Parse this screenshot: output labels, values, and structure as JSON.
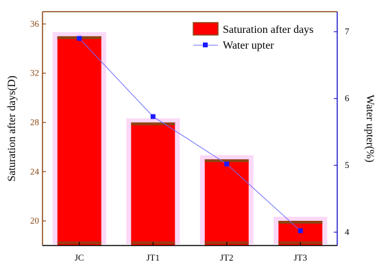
{
  "chart_data": {
    "type": "bar",
    "categories": [
      "JC",
      "JT1",
      "JT2",
      "JT3"
    ],
    "series": [
      {
        "name": "Saturation after days",
        "type": "bar",
        "axis": "left",
        "values": [
          35,
          28,
          25,
          20
        ],
        "color": "#ff0000",
        "edge_color": "#8b4513"
      },
      {
        "name": "Water upter",
        "type": "line",
        "axis": "right",
        "values": [
          6.9,
          5.73,
          5.02,
          4.02
        ],
        "color": "#1a1aff"
      }
    ],
    "ylabel": "Saturation after days(D)",
    "y2label": "Water upter(%)",
    "ylim": [
      18,
      37
    ],
    "y2lim": [
      3.8,
      7.3
    ],
    "yticks": [
      20,
      24,
      28,
      32,
      36
    ],
    "y2ticks": [
      4,
      5,
      6,
      7
    ],
    "legend_position": "top-right",
    "grid": false,
    "colors": {
      "left_axis": "#8b4513",
      "right_axis": "#1a1acc",
      "glow": "#f5b8f0"
    }
  }
}
